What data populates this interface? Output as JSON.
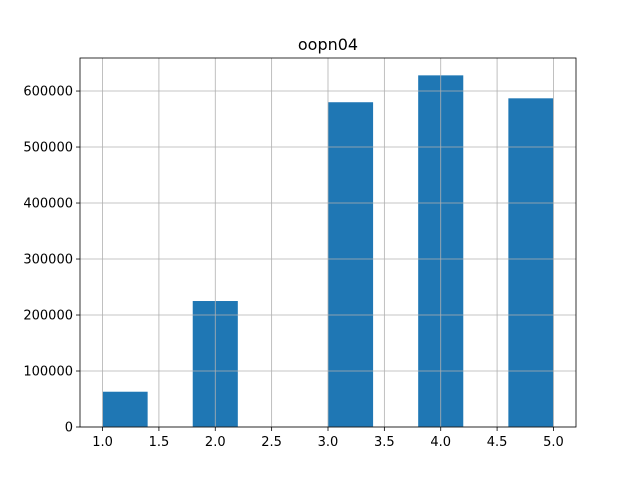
{
  "chart_data": {
    "type": "bar",
    "title": "oopn04",
    "xlabel": "",
    "ylabel": "",
    "grid": true,
    "bin_edges": [
      1.0,
      1.4,
      1.8,
      2.2,
      2.6,
      3.0,
      3.4,
      3.8,
      4.2,
      4.6,
      5.0
    ],
    "values": [
      63000,
      0,
      225000,
      0,
      0,
      580000,
      0,
      628000,
      0,
      587000
    ],
    "xlim": [
      0.8,
      5.2
    ],
    "ylim": [
      0,
      659000
    ],
    "x_ticks": [
      "1.0",
      "1.5",
      "2.0",
      "2.5",
      "3.0",
      "3.5",
      "4.0",
      "4.5",
      "5.0"
    ],
    "y_ticks": [
      "0",
      "100000",
      "200000",
      "300000",
      "400000",
      "500000",
      "600000"
    ],
    "colors": {
      "bar": "#1f77b4",
      "grid": "#b0b0b0",
      "axis": "#000000"
    }
  }
}
